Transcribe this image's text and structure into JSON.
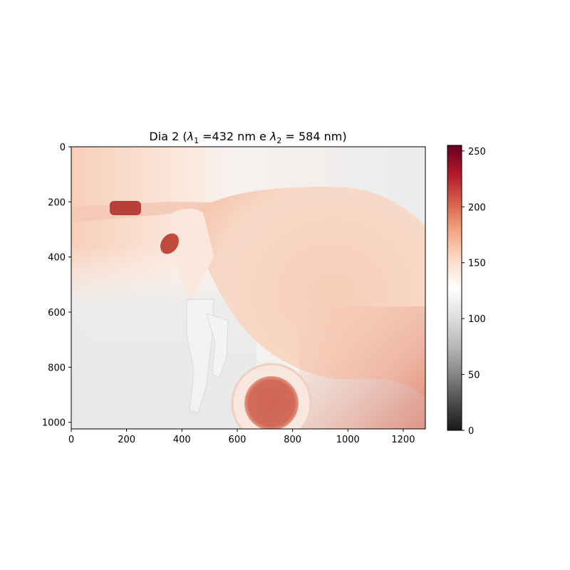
{
  "chart_data": {
    "type": "heatmap",
    "title": "Dia 2 (λ1 =432 nm e λ2 = 584 nm)",
    "title_parts": {
      "prefix": "Dia 2 (",
      "lambda": "λ",
      "sub1": "1",
      "mid": " =432 nm e ",
      "sub2": "2",
      "suffix": " = 584 nm)"
    },
    "xlim": [
      0,
      1280
    ],
    "ylim": [
      1024,
      0
    ],
    "xticks": [
      "0",
      "200",
      "400",
      "600",
      "800",
      "1000",
      "1200"
    ],
    "xtick_values": [
      0,
      200,
      400,
      600,
      800,
      1000,
      1200
    ],
    "yticks": [
      "0",
      "200",
      "400",
      "600",
      "800",
      "1000"
    ],
    "ytick_values": [
      0,
      200,
      400,
      600,
      800,
      1000
    ],
    "colorbar": {
      "colormap": "RdGy_r",
      "range": [
        0,
        255
      ],
      "ticks": [
        "0",
        "50",
        "100",
        "150",
        "200",
        "250"
      ],
      "tick_values": [
        0,
        50,
        100,
        150,
        200,
        250
      ],
      "colors": [
        "#1a1a1a",
        "#4d4d4d",
        "#878787",
        "#bababa",
        "#e0e0e0",
        "#ffffff",
        "#fddbc7",
        "#f4a582",
        "#d6604d",
        "#b2182b",
        "#67001f"
      ]
    },
    "image_description_colors": {
      "background_left": "#f6d2bf",
      "background_mid": "#fbf4ef",
      "background_right": "#eeeeee",
      "body": "#f8d8c7",
      "spot": "#cc5e50",
      "dark_spot": "#b83a36",
      "legs": "#f0f0f0"
    }
  }
}
